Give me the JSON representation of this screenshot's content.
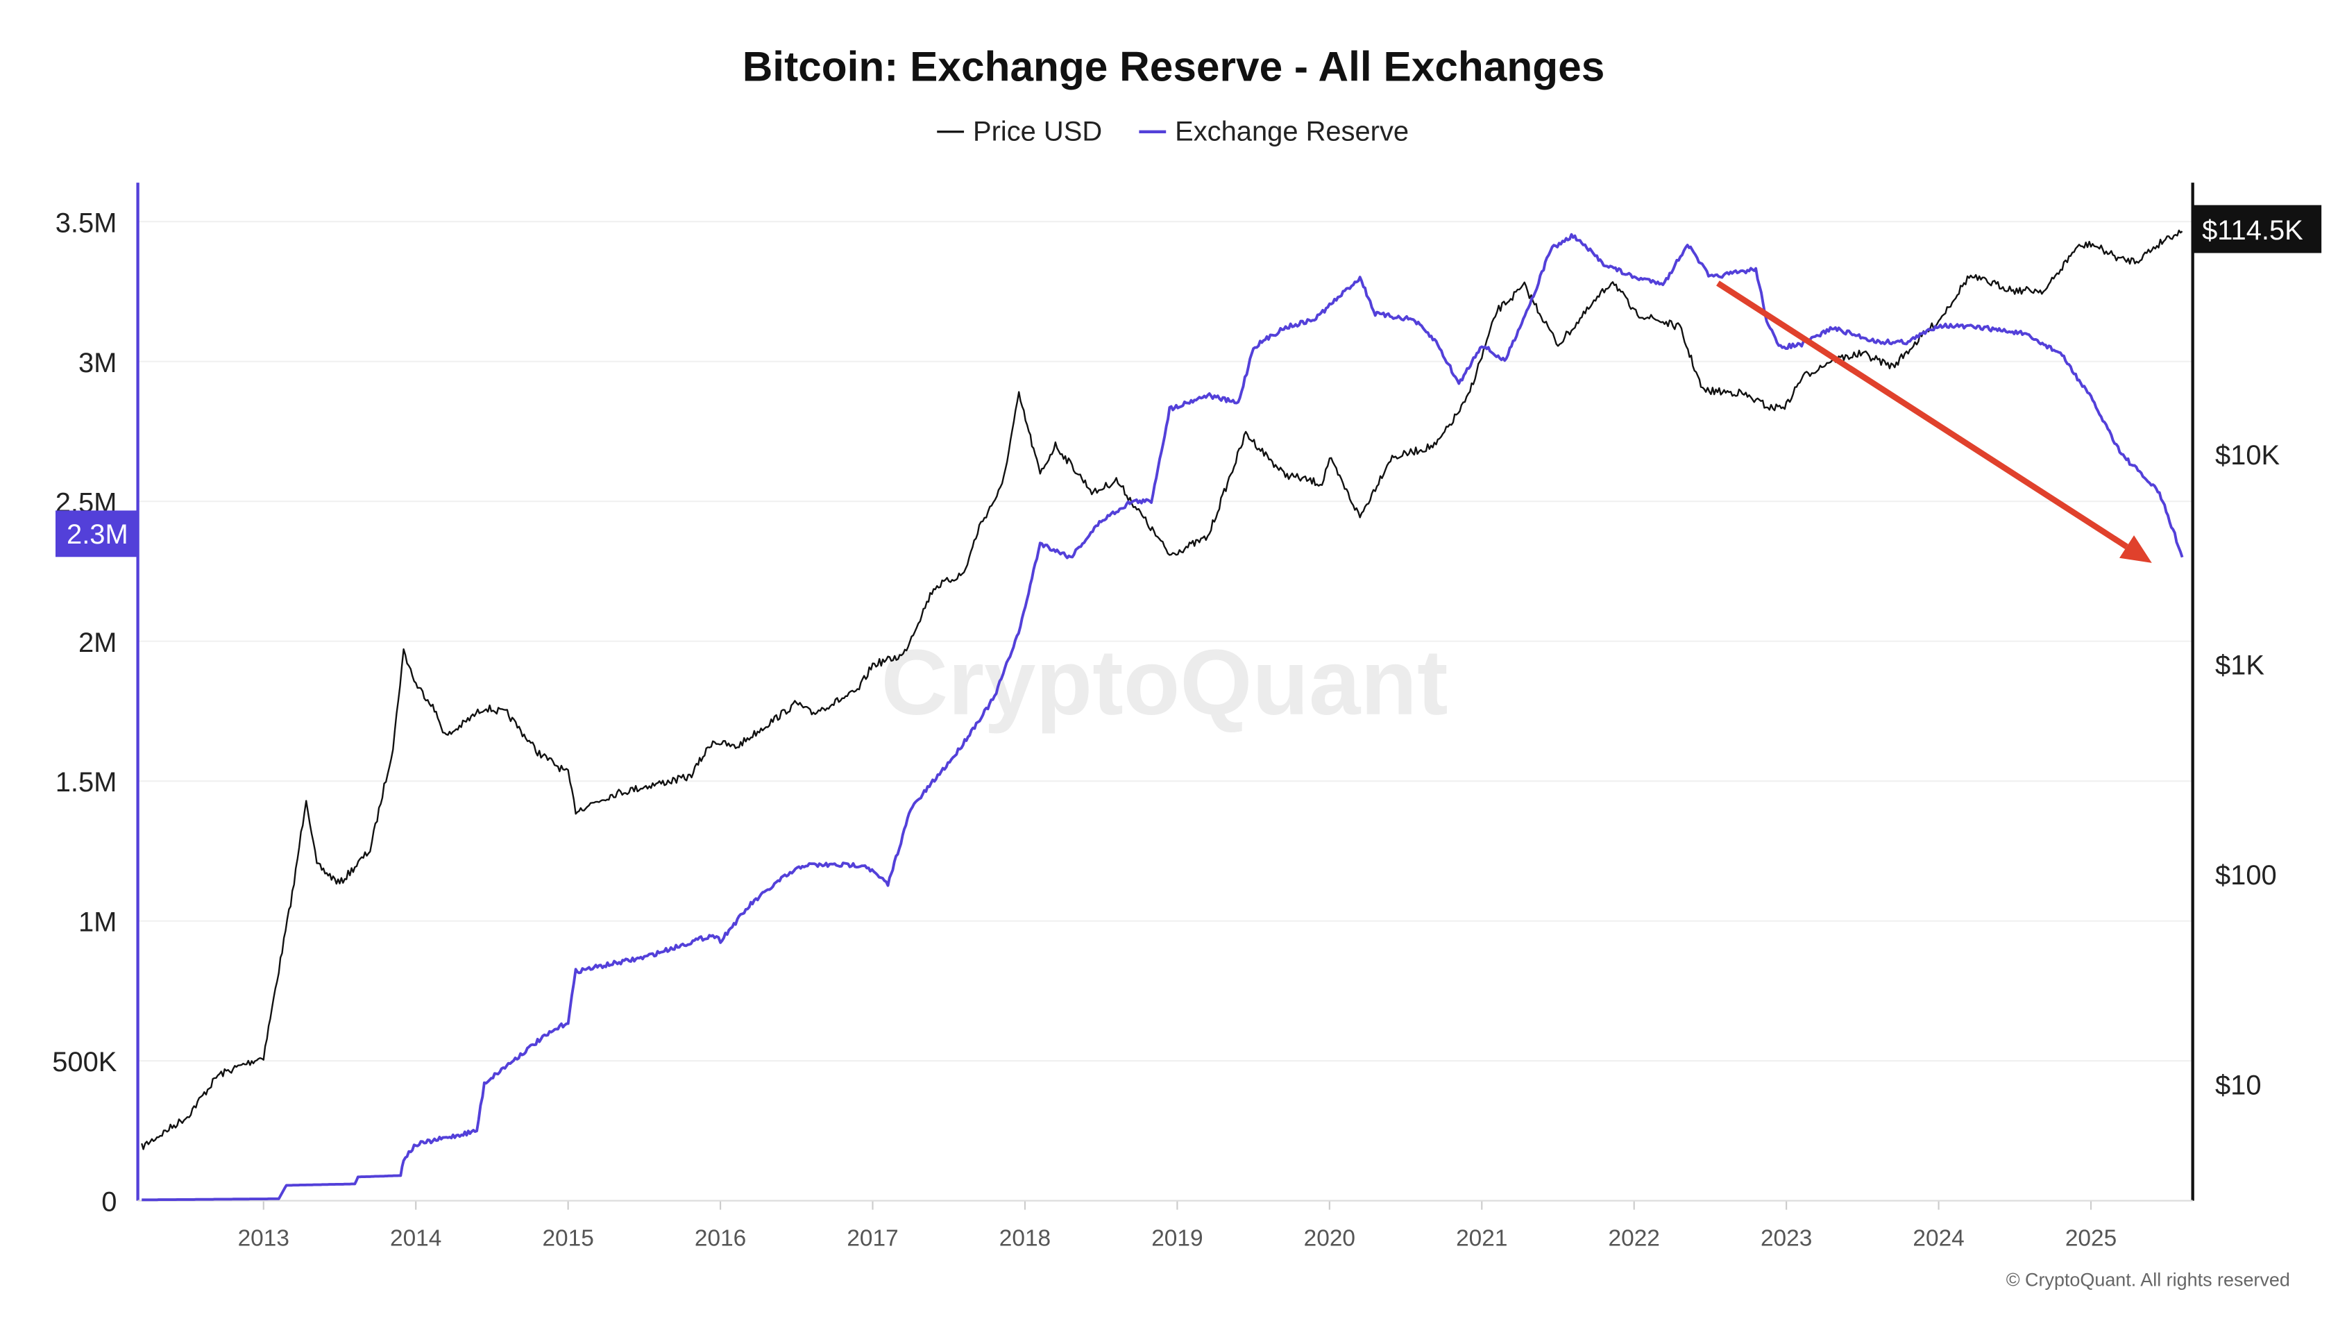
{
  "chart_data": {
    "type": "line",
    "title": "Bitcoin: Exchange Reserve - All Exchanges",
    "legend_position": "top",
    "watermark": "CryptoQuant",
    "copyright": "© CryptoQuant. All rights reserved",
    "grid": true,
    "x_ticks": [
      "2013",
      "2014",
      "2015",
      "2016",
      "2017",
      "2018",
      "2019",
      "2020",
      "2021",
      "2022",
      "2023",
      "2024",
      "2025"
    ],
    "x_range": [
      2012.2,
      2025.6
    ],
    "left_axis": {
      "scale": "linear",
      "range": [
        0,
        3500000
      ],
      "ticks": [
        "0",
        "500K",
        "1M",
        "1.5M",
        "2M",
        "2.5M",
        "3M",
        "3.5M"
      ],
      "tick_values": [
        0,
        500000,
        1000000,
        1500000,
        2000000,
        2500000,
        3000000,
        3500000
      ],
      "color": "#5340d9"
    },
    "right_axis": {
      "scale": "log",
      "ticks": [
        "$10",
        "$100",
        "$1K",
        "$10K"
      ],
      "tick_values": [
        10,
        100,
        1000,
        10000
      ],
      "color": "#000000"
    },
    "current_labels": {
      "reserve": "2.3M",
      "price": "$114.5K"
    },
    "series": [
      {
        "name": "Price USD",
        "axis": "right",
        "color": "#111111",
        "x": [
          2012.2,
          2012.5,
          2012.7,
          2013.0,
          2013.2,
          2013.28,
          2013.35,
          2013.5,
          2013.7,
          2013.85,
          2013.92,
          2014.0,
          2014.1,
          2014.2,
          2014.45,
          2014.6,
          2014.8,
          2015.0,
          2015.05,
          2015.3,
          2015.5,
          2015.8,
          2015.95,
          2016.1,
          2016.5,
          2016.6,
          2016.9,
          2017.0,
          2017.2,
          2017.4,
          2017.6,
          2017.7,
          2017.85,
          2017.96,
          2018.1,
          2018.2,
          2018.45,
          2018.6,
          2018.87,
          2018.95,
          2019.2,
          2019.45,
          2019.7,
          2019.95,
          2020.0,
          2020.2,
          2020.4,
          2020.7,
          2020.9,
          2021.0,
          2021.1,
          2021.28,
          2021.5,
          2021.6,
          2021.86,
          2022.0,
          2022.3,
          2022.45,
          2022.7,
          2022.9,
          2023.0,
          2023.1,
          2023.3,
          2023.5,
          2023.7,
          2023.9,
          2024.0,
          2024.2,
          2024.5,
          2024.7,
          2024.9,
          2025.0,
          2025.2,
          2025.3,
          2025.5,
          2025.6
        ],
        "y": [
          5,
          7,
          11,
          13.5,
          90,
          230,
          110,
          90,
          130,
          400,
          1150,
          800,
          650,
          450,
          620,
          580,
          380,
          300,
          200,
          240,
          260,
          290,
          430,
          400,
          650,
          580,
          740,
          990,
          1100,
          2300,
          2700,
          4500,
          7000,
          19000,
          8000,
          11000,
          6500,
          7500,
          4000,
          3300,
          4000,
          12500,
          8000,
          7200,
          9500,
          5000,
          9500,
          11000,
          18000,
          29000,
          48000,
          63000,
          33000,
          40000,
          67000,
          47000,
          40000,
          20000,
          19500,
          16500,
          17000,
          23000,
          28000,
          30000,
          26000,
          37000,
          43000,
          70000,
          60000,
          60000,
          95000,
          100000,
          84000,
          83000,
          107000,
          114500
        ]
      },
      {
        "name": "Exchange Reserve",
        "axis": "left",
        "color": "#5340d9",
        "x": [
          2012.2,
          2013.1,
          2013.15,
          2013.6,
          2013.62,
          2013.9,
          2013.92,
          2014.0,
          2014.4,
          2014.45,
          2014.8,
          2015.0,
          2015.05,
          2015.5,
          2015.95,
          2016.0,
          2016.2,
          2016.4,
          2016.55,
          2016.95,
          2017.1,
          2017.25,
          2017.55,
          2017.8,
          2017.97,
          2018.1,
          2018.3,
          2018.5,
          2018.7,
          2018.83,
          2018.95,
          2019.2,
          2019.4,
          2019.5,
          2019.7,
          2019.9,
          2020.2,
          2020.3,
          2020.55,
          2020.7,
          2020.85,
          2021.0,
          2021.15,
          2021.35,
          2021.45,
          2021.6,
          2021.8,
          2022.0,
          2022.2,
          2022.35,
          2022.5,
          2022.8,
          2022.87,
          2022.95,
          2023.1,
          2023.3,
          2023.6,
          2023.8,
          2024.0,
          2024.3,
          2024.55,
          2024.8,
          2025.0,
          2025.2,
          2025.45,
          2025.55,
          2025.6
        ],
        "y": [
          3000,
          7000,
          55000,
          60000,
          85000,
          90000,
          150000,
          200000,
          250000,
          420000,
          570000,
          640000,
          820000,
          870000,
          950000,
          930000,
          1060000,
          1150000,
          1200000,
          1200000,
          1130000,
          1400000,
          1600000,
          1800000,
          2050000,
          2350000,
          2300000,
          2430000,
          2500000,
          2500000,
          2830000,
          2880000,
          2850000,
          3050000,
          3120000,
          3150000,
          3300000,
          3170000,
          3150000,
          3070000,
          2920000,
          3060000,
          3000000,
          3250000,
          3400000,
          3450000,
          3350000,
          3300000,
          3280000,
          3420000,
          3300000,
          3330000,
          3150000,
          3050000,
          3060000,
          3120000,
          3070000,
          3070000,
          3130000,
          3120000,
          3100000,
          3030000,
          2870000,
          2670000,
          2530000,
          2380000,
          2300000
        ]
      }
    ],
    "annotation": {
      "type": "arrow",
      "color": "#e0412c",
      "from": [
        2022.55,
        3280000
      ],
      "to": [
        2025.4,
        2280000
      ]
    }
  }
}
